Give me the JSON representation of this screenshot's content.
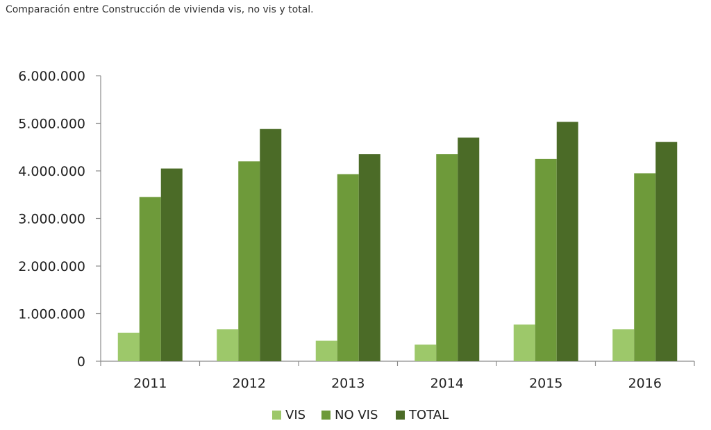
{
  "title": "Comparación entre Construcción de vivienda vis, no vis  y total.",
  "chart_data": {
    "type": "bar",
    "title": "Comparación entre Construcción de vivienda vis, no vis  y total.",
    "xlabel": "",
    "ylabel": "",
    "ylim": [
      0,
      6000000
    ],
    "yticks": [
      0,
      1000000,
      2000000,
      3000000,
      4000000,
      5000000,
      6000000
    ],
    "ytick_labels": [
      "0",
      "1.000.000",
      "2.000.000",
      "3.000.000",
      "4.000.000",
      "5.000.000",
      "6.000.000"
    ],
    "categories": [
      "2011",
      "2012",
      "2013",
      "2014",
      "2015",
      "2016"
    ],
    "series": [
      {
        "name": "VIS",
        "color": "#9dc86a",
        "values": [
          600000,
          670000,
          430000,
          350000,
          770000,
          670000
        ]
      },
      {
        "name": "NO VIS",
        "color": "#6e9a3a",
        "values": [
          3450000,
          4200000,
          3930000,
          4350000,
          4250000,
          3950000
        ]
      },
      {
        "name": "TOTAL",
        "color": "#4b6b27",
        "values": [
          4050000,
          4880000,
          4350000,
          4700000,
          5030000,
          4610000
        ]
      }
    ],
    "grid": false,
    "legend": "bottom"
  }
}
